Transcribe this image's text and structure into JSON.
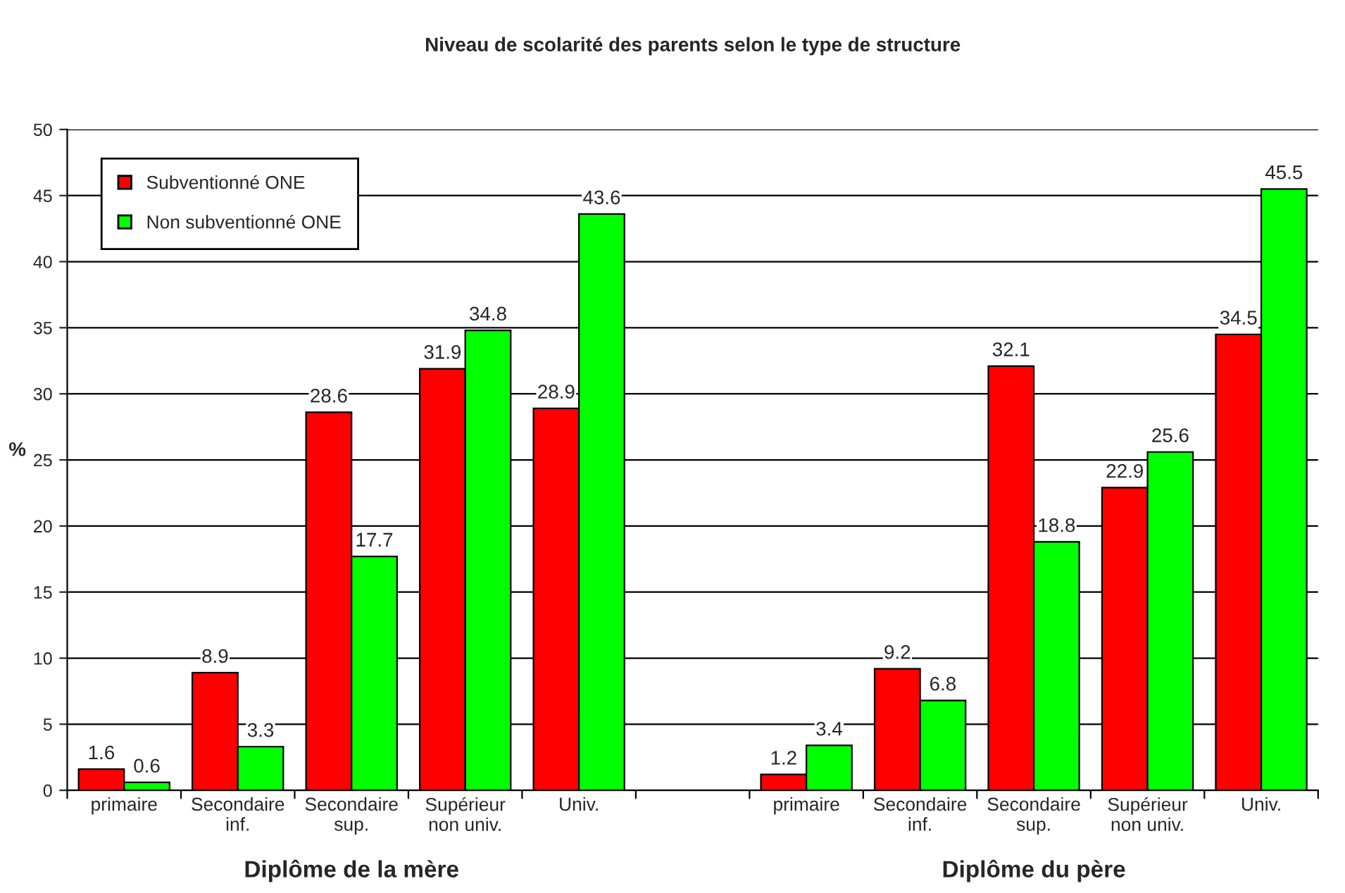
{
  "chart_data": {
    "type": "bar",
    "title": "Niveau de scolarité des parents selon le type de structure",
    "ylabel": "%",
    "categories": [
      "primaire",
      "Secondaire inf.",
      "Secondaire sup.",
      "Supérieur non univ.",
      "Univ.",
      null,
      "primaire",
      "Secondaire inf.",
      "Secondaire sup.",
      "Supérieur non univ.",
      "Univ."
    ],
    "series": [
      {
        "name": "Subventionné ONE",
        "color": "#ff0000",
        "values": [
          1.6,
          8.9,
          28.6,
          31.9,
          28.9,
          null,
          1.2,
          9.2,
          32.1,
          22.9,
          34.5
        ]
      },
      {
        "name": "Non subventionné ONE",
        "color": "#00ff00",
        "values": [
          0.6,
          3.3,
          17.7,
          34.8,
          43.6,
          null,
          3.4,
          6.8,
          18.8,
          25.6,
          45.5
        ]
      }
    ],
    "ylim": [
      0,
      50
    ],
    "yticks": [
      0,
      5,
      10,
      15,
      20,
      25,
      30,
      35,
      40,
      45,
      50
    ],
    "grid": "y",
    "legend": "top left",
    "data_labels": true,
    "annotations": [
      "Diplôme de la mère",
      "Diplôme du père"
    ]
  }
}
